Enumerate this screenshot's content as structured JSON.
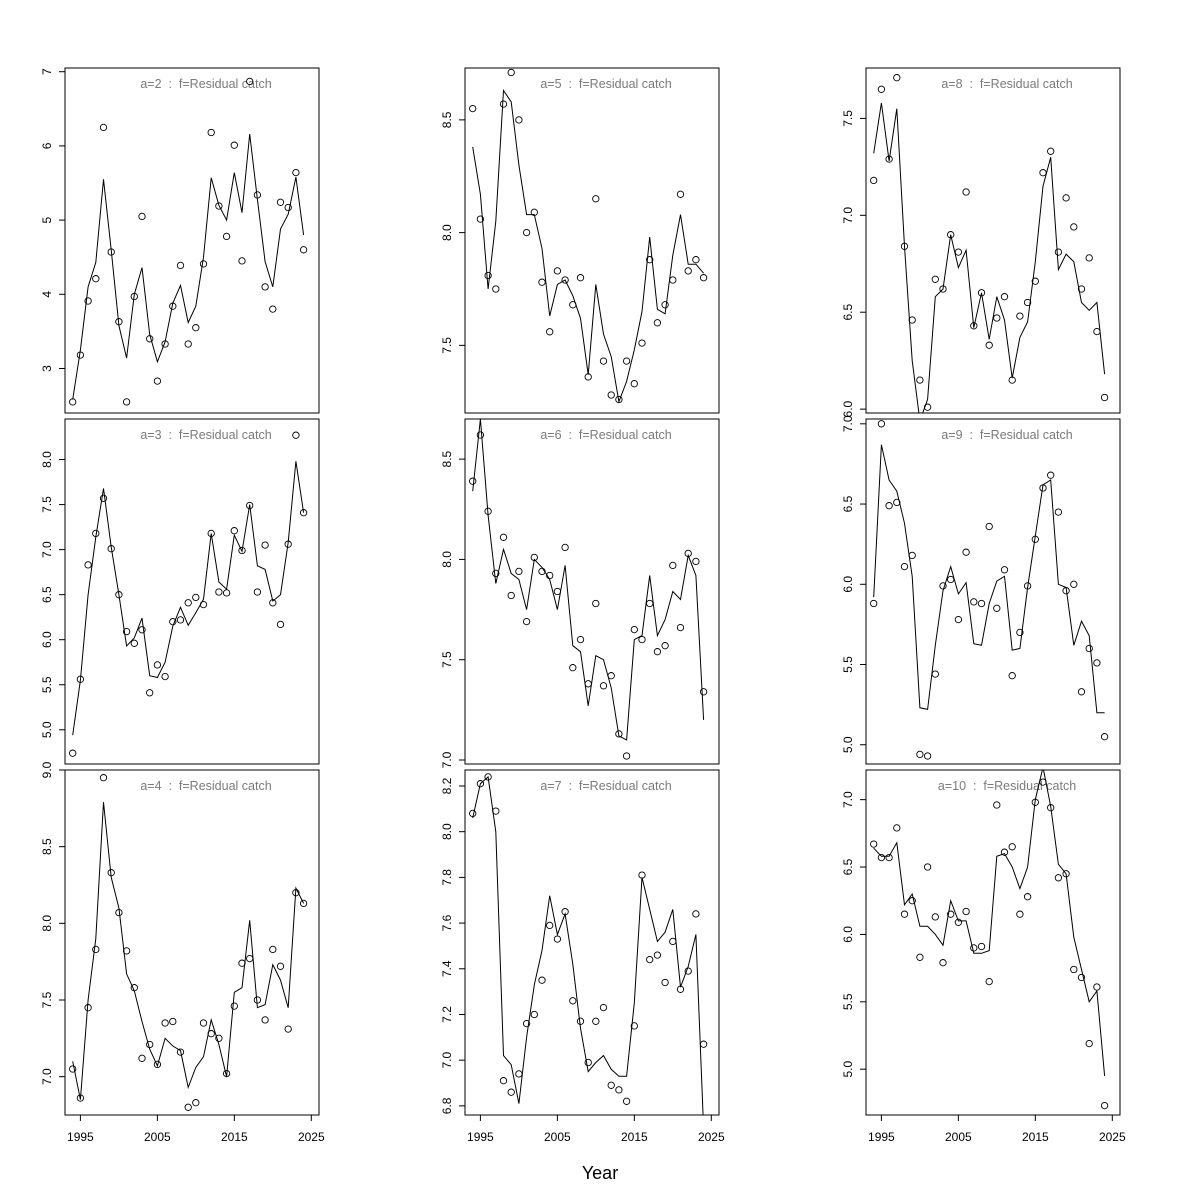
{
  "x_title": "Year",
  "chart_data": [
    {
      "type": "scatter",
      "title": "a=2  :  f=Residual catch",
      "xlim": [
        1993,
        2026
      ],
      "ylim": [
        2.4,
        7.05
      ],
      "yticks": [
        3,
        4,
        5,
        6,
        7
      ],
      "xticks": [],
      "x_start": 1994,
      "points": [
        2.55,
        3.18,
        3.91,
        4.21,
        6.25,
        4.57,
        3.63,
        2.55,
        3.97,
        5.05,
        3.4,
        2.83,
        3.33,
        3.84,
        4.39,
        3.33,
        3.55,
        4.41,
        6.18,
        5.19,
        4.78,
        6.01,
        4.45,
        6.87,
        5.34,
        4.1,
        3.8,
        5.24,
        5.17,
        5.64,
        4.6
      ],
      "fitted": [
        2.58,
        3.25,
        4.1,
        4.43,
        5.55,
        4.6,
        3.58,
        3.14,
        4.0,
        4.36,
        3.46,
        3.09,
        3.36,
        3.88,
        4.12,
        3.62,
        3.84,
        4.5,
        5.57,
        5.2,
        5.0,
        5.64,
        5.1,
        6.16,
        5.28,
        4.44,
        4.1,
        4.88,
        5.08,
        5.58,
        4.8
      ]
    },
    {
      "type": "scatter",
      "title": "a=5  :  f=Residual catch",
      "xlim": [
        1993,
        2026
      ],
      "ylim": [
        7.2,
        8.73
      ],
      "yticks": [
        7.5,
        8.0,
        8.5
      ],
      "xticks": [],
      "x_start": 1994,
      "points": [
        8.55,
        8.06,
        7.81,
        7.75,
        8.57,
        8.71,
        8.5,
        8.0,
        8.09,
        7.78,
        7.56,
        7.83,
        7.79,
        7.68,
        7.8,
        7.36,
        8.15,
        7.43,
        7.28,
        7.26,
        7.43,
        7.33,
        7.51,
        7.88,
        7.6,
        7.68,
        7.79,
        8.17,
        7.83,
        7.88,
        7.8
      ],
      "fitted": [
        8.38,
        8.17,
        7.75,
        8.05,
        8.63,
        8.58,
        8.3,
        8.08,
        8.08,
        7.93,
        7.63,
        7.77,
        7.79,
        7.72,
        7.62,
        7.37,
        7.77,
        7.55,
        7.45,
        7.25,
        7.34,
        7.48,
        7.65,
        7.98,
        7.66,
        7.64,
        7.9,
        8.08,
        7.86,
        7.86,
        7.82
      ]
    },
    {
      "type": "scatter",
      "title": "a=8  :  f=Residual catch",
      "xlim": [
        1993,
        2026
      ],
      "ylim": [
        5.98,
        7.76
      ],
      "yticks": [
        6.0,
        6.5,
        7.0,
        7.5
      ],
      "xticks": [],
      "x_start": 1994,
      "points": [
        7.18,
        7.65,
        7.29,
        7.71,
        6.84,
        6.46,
        6.15,
        6.01,
        6.67,
        6.62,
        6.9,
        6.81,
        7.12,
        6.43,
        6.6,
        6.33,
        6.47,
        6.58,
        6.15,
        6.48,
        6.55,
        6.66,
        7.22,
        7.33,
        6.81,
        7.09,
        6.94,
        6.62,
        6.78,
        6.4,
        6.06
      ],
      "fitted": [
        7.32,
        7.58,
        7.28,
        7.55,
        6.84,
        6.25,
        5.94,
        6.05,
        6.58,
        6.62,
        6.9,
        6.73,
        6.82,
        6.42,
        6.6,
        6.36,
        6.58,
        6.46,
        6.16,
        6.37,
        6.45,
        6.76,
        7.15,
        7.3,
        6.72,
        6.8,
        6.76,
        6.55,
        6.51,
        6.55,
        6.18
      ]
    },
    {
      "type": "scatter",
      "title": "a=3  :  f=Residual catch",
      "xlim": [
        1993,
        2026
      ],
      "ylim": [
        4.62,
        8.45
      ],
      "yticks": [
        5.0,
        5.5,
        6.0,
        6.5,
        7.0,
        7.5,
        8.0
      ],
      "xticks": [],
      "x_start": 1994,
      "points": [
        4.74,
        5.56,
        6.83,
        7.18,
        7.57,
        7.01,
        6.5,
        6.09,
        5.96,
        6.11,
        5.41,
        5.72,
        5.59,
        6.2,
        6.22,
        6.41,
        6.47,
        6.39,
        7.18,
        6.53,
        6.52,
        7.21,
        6.99,
        7.49,
        6.53,
        7.05,
        6.41,
        6.17,
        7.06,
        8.27,
        7.41
      ],
      "fitted": [
        4.94,
        5.55,
        6.5,
        7.14,
        7.68,
        7.03,
        6.5,
        5.93,
        6.02,
        6.24,
        5.6,
        5.58,
        5.75,
        6.15,
        6.36,
        6.16,
        6.3,
        6.45,
        7.18,
        6.64,
        6.56,
        7.16,
        6.98,
        7.5,
        6.82,
        6.78,
        6.43,
        6.5,
        7.08,
        7.98,
        7.41
      ]
    },
    {
      "type": "scatter",
      "title": "a=6  :  f=Residual catch",
      "xlim": [
        1993,
        2026
      ],
      "ylim": [
        6.98,
        8.7
      ],
      "yticks": [
        7.0,
        7.5,
        8.0,
        8.5
      ],
      "xticks": [],
      "x_start": 1994,
      "points": [
        8.39,
        8.62,
        8.24,
        7.93,
        8.11,
        7.82,
        7.94,
        7.69,
        8.01,
        7.94,
        7.92,
        7.84,
        8.06,
        7.46,
        7.6,
        7.38,
        7.78,
        7.37,
        7.42,
        7.13,
        7.02,
        7.65,
        7.6,
        7.78,
        7.54,
        7.57,
        7.97,
        7.66,
        8.03,
        7.99,
        7.34
      ],
      "fitted": [
        8.34,
        8.7,
        8.22,
        7.88,
        8.05,
        7.93,
        7.9,
        7.75,
        8.0,
        7.96,
        7.9,
        7.75,
        7.97,
        7.57,
        7.54,
        7.27,
        7.52,
        7.5,
        7.36,
        7.12,
        7.1,
        7.6,
        7.62,
        7.92,
        7.62,
        7.7,
        7.84,
        7.8,
        8.02,
        7.92,
        7.2
      ]
    },
    {
      "type": "scatter",
      "title": "a=9  :  f=Residual catch",
      "xlim": [
        1993,
        2026
      ],
      "ylim": [
        4.88,
        7.03
      ],
      "yticks": [
        5.0,
        5.5,
        6.0,
        6.5,
        7.0
      ],
      "xticks": [],
      "x_start": 1994,
      "points": [
        5.88,
        7.0,
        6.49,
        6.51,
        6.11,
        6.18,
        4.94,
        4.93,
        5.44,
        5.99,
        6.03,
        5.78,
        6.2,
        5.89,
        5.88,
        6.36,
        5.85,
        6.09,
        5.43,
        5.7,
        5.99,
        6.28,
        6.6,
        6.68,
        6.45,
        5.96,
        6.0,
        5.33,
        5.6,
        5.51,
        5.05
      ],
      "fitted": [
        5.92,
        6.87,
        6.65,
        6.58,
        6.38,
        6.05,
        5.23,
        5.22,
        5.62,
        5.96,
        6.11,
        5.94,
        6.01,
        5.63,
        5.62,
        5.88,
        6.02,
        6.05,
        5.59,
        5.6,
        5.98,
        6.3,
        6.62,
        6.65,
        6.0,
        5.98,
        5.62,
        5.77,
        5.68,
        5.2,
        5.2
      ]
    },
    {
      "type": "scatter",
      "title": "a=4  :  f=Residual catch",
      "xlim": [
        1993,
        2026
      ],
      "ylim": [
        6.75,
        9.0
      ],
      "yticks": [
        7.0,
        7.5,
        8.0,
        8.5,
        9.0
      ],
      "xticks": [
        1995,
        2005,
        2015,
        2025
      ],
      "x_start": 1994,
      "points": [
        7.05,
        6.86,
        7.45,
        7.83,
        8.95,
        8.33,
        8.07,
        7.82,
        7.58,
        7.12,
        7.21,
        7.08,
        7.35,
        7.36,
        7.16,
        6.8,
        6.83,
        7.35,
        7.28,
        7.25,
        7.02,
        7.46,
        7.74,
        7.77,
        7.5,
        7.37,
        7.83,
        7.72,
        7.31,
        8.2,
        8.13
      ],
      "fitted": [
        7.1,
        6.85,
        7.5,
        7.9,
        8.79,
        8.3,
        8.1,
        7.67,
        7.56,
        7.36,
        7.18,
        7.07,
        7.25,
        7.2,
        7.17,
        6.93,
        7.06,
        7.13,
        7.37,
        7.21,
        7.0,
        7.55,
        7.58,
        8.02,
        7.45,
        7.47,
        7.73,
        7.63,
        7.45,
        8.23,
        8.13
      ]
    },
    {
      "type": "scatter",
      "title": "a=7  :  f=Residual catch",
      "xlim": [
        1993,
        2026
      ],
      "ylim": [
        6.76,
        8.27
      ],
      "yticks": [
        6.8,
        7.0,
        7.2,
        7.4,
        7.6,
        7.8,
        8.0,
        8.2
      ],
      "xticks": [
        1995,
        2005,
        2015,
        2025
      ],
      "x_start": 1994,
      "points": [
        8.08,
        8.21,
        8.24,
        8.09,
        6.91,
        6.86,
        6.94,
        7.16,
        7.2,
        7.35,
        7.59,
        7.53,
        7.65,
        7.26,
        7.17,
        6.99,
        7.17,
        7.23,
        6.89,
        6.87,
        6.82,
        7.15,
        7.81,
        7.44,
        7.46,
        7.34,
        7.52,
        7.31,
        7.39,
        7.64,
        7.07
      ],
      "fitted": [
        8.06,
        8.21,
        8.24,
        8.0,
        7.02,
        6.98,
        6.81,
        7.1,
        7.33,
        7.48,
        7.72,
        7.55,
        7.64,
        7.42,
        7.14,
        6.95,
        6.99,
        7.02,
        6.96,
        6.93,
        6.93,
        7.25,
        7.8,
        7.66,
        7.52,
        7.56,
        7.66,
        7.32,
        7.41,
        7.55,
        6.7
      ]
    },
    {
      "type": "scatter",
      "title": "a=10  :  f=Residual catch",
      "xlim": [
        1993,
        2026
      ],
      "ylim": [
        4.66,
        7.22
      ],
      "yticks": [
        5.0,
        5.5,
        6.0,
        6.5,
        7.0
      ],
      "xticks": [
        1995,
        2005,
        2015,
        2025
      ],
      "x_start": 1994,
      "points": [
        6.67,
        6.57,
        6.57,
        6.79,
        6.15,
        6.25,
        5.83,
        6.5,
        6.13,
        5.79,
        6.15,
        6.09,
        6.17,
        5.9,
        5.91,
        5.65,
        6.96,
        6.61,
        6.65,
        6.15,
        6.28,
        6.98,
        7.13,
        6.94,
        6.42,
        6.45,
        5.74,
        5.68,
        5.19,
        5.61,
        4.73
      ],
      "fitted": [
        6.64,
        6.58,
        6.58,
        6.68,
        6.22,
        6.3,
        6.06,
        6.06,
        6.0,
        5.92,
        6.25,
        6.1,
        6.1,
        5.86,
        5.86,
        5.88,
        6.58,
        6.6,
        6.5,
        6.34,
        6.5,
        7.0,
        7.24,
        6.95,
        6.52,
        6.45,
        5.98,
        5.74,
        5.5,
        5.58,
        4.95
      ]
    }
  ]
}
